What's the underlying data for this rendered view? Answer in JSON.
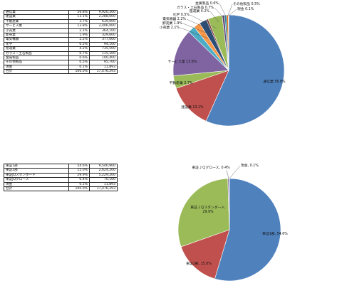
{
  "chart_data": [
    {
      "type": "pie",
      "table": {
        "rows": [
          {
            "name": "通信業",
            "pct": "56.8%",
            "value": "9,920,300"
          },
          {
            "name": "建設業",
            "pct": "13.1%",
            "value": "2,288,600"
          },
          {
            "name": "不動産業",
            "pct": "3.7%",
            "value": "639,000"
          },
          {
            "name": "サービス業",
            "pct": "13.8%",
            "value": "2,406,000"
          },
          {
            "name": "小売業",
            "pct": "2.1%",
            "value": "364,100"
          },
          {
            "name": "卸売業",
            "pct": "1.9%",
            "value": "329,600"
          },
          {
            "name": "電気機器",
            "pct": "2.2%",
            "value": "377,000"
          },
          {
            "name": "化学",
            "pct": "0.5%",
            "value": "94,100"
          },
          {
            "name": "陸運業",
            "pct": "4.2%",
            "value": "735,500"
          },
          {
            "name": "ガラス・土石製品",
            "pct": "0.7%",
            "value": "115,100"
          },
          {
            "name": "金属製品",
            "pct": "0.6%",
            "value": "100,400"
          },
          {
            "name": "その他製品",
            "pct": "0.5%",
            "value": "95,700"
          },
          {
            "name": "現金",
            "pct": "0.1%",
            "value": "11,893"
          }
        ],
        "total": {
          "name": "合計",
          "pct": "100.0%",
          "value": "17,476,293"
        }
      },
      "slices": [
        {
          "name": "通信業",
          "value": 56.8,
          "label": "通信業 56.8%",
          "color": "#4f81bd"
        },
        {
          "name": "建設業",
          "value": 13.1,
          "label": "建設業 13.1%",
          "color": "#c0504d"
        },
        {
          "name": "不動産業",
          "value": 3.7,
          "label": "不動産業 3.7%",
          "color": "#9bbb59"
        },
        {
          "name": "サービス業",
          "value": 13.8,
          "label": "サービス業 13.8%",
          "color": "#8064a2"
        },
        {
          "name": "小売業",
          "value": 2.1,
          "label": "小売業 2.1%",
          "color": "#4bacc6"
        },
        {
          "name": "卸売業",
          "value": 1.9,
          "label": "卸売業 1.9%",
          "color": "#f79646"
        },
        {
          "name": "電気機器",
          "value": 2.2,
          "label": "電気機器 2.2%",
          "color": "#2c4d75"
        },
        {
          "name": "化学",
          "value": 0.5,
          "label": "化学 0.5%",
          "color": "#772c2a"
        },
        {
          "name": "陸運業",
          "value": 4.2,
          "label": "陸運業 4.2%",
          "color": "#9bbb59"
        },
        {
          "name": "ガラス・土石製品",
          "value": 0.7,
          "label": "ガラス・土石製品 0.7%",
          "color": "#5f497a"
        },
        {
          "name": "金属製品",
          "value": 0.6,
          "label": "金属製品 0.6%",
          "color": "#31859c"
        },
        {
          "name": "その他製品",
          "value": 0.5,
          "label": "その他製品 0.5%",
          "color": "#e46c0a"
        },
        {
          "name": "現金",
          "value": 0.1,
          "label": "現金 0.1%",
          "color": "#7f7f7f"
        }
      ]
    },
    {
      "type": "pie",
      "table": {
        "rows": [
          {
            "name": "東証1部",
            "pct": "54.6%",
            "value": "9,540,900"
          },
          {
            "name": "東証2部",
            "pct": "15.0%",
            "value": "2,624,200"
          },
          {
            "name": "東証JQスタンダード",
            "pct": "29.9%",
            "value": "5,229,200"
          },
          {
            "name": "東証JQグロース",
            "pct": "0.4%",
            "value": "70,100"
          },
          {
            "name": "現金",
            "pct": "0.1%",
            "value": "11,893"
          }
        ],
        "total": {
          "name": "合計",
          "pct": "100.0%",
          "value": "17,476,293"
        }
      },
      "slices": [
        {
          "name": "東証1部",
          "value": 54.6,
          "label": "東証1部, 54.6%",
          "color": "#4f81bd"
        },
        {
          "name": "東証2部",
          "value": 15.0,
          "label": "東証2部, 15.0%",
          "color": "#c0504d"
        },
        {
          "name": "東証ＪＱスタンダード",
          "value": 29.9,
          "label": "東証ＪＱスタンダード, 29.9%",
          "color": "#9bbb59"
        },
        {
          "name": "東証ＪＱグロース",
          "value": 0.4,
          "label": "東証ＪＱグロース, 0.4%",
          "color": "#8064a2"
        },
        {
          "name": "現金",
          "value": 0.1,
          "label": "現金, 0.1%",
          "color": "#4bacc6"
        }
      ]
    }
  ]
}
